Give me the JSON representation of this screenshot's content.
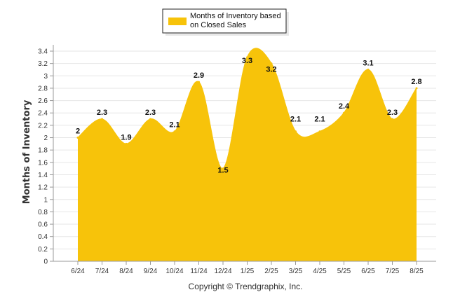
{
  "chart_data": {
    "type": "area",
    "categories": [
      "6/24",
      "7/24",
      "8/24",
      "9/24",
      "10/24",
      "11/24",
      "12/24",
      "1/25",
      "2/25",
      "3/25",
      "4/25",
      "5/25",
      "6/25",
      "7/25",
      "8/25"
    ],
    "series": [
      {
        "name": "Months of Inventory based on Closed Sales",
        "values": [
          2,
          2.3,
          1.9,
          2.3,
          2.1,
          2.9,
          1.5,
          3.3,
          3.2,
          2.1,
          2.1,
          2.4,
          3.1,
          2.3,
          2.8
        ],
        "color": "#F7C30A"
      }
    ],
    "data_labels": [
      "2",
      "2.3",
      "1.9",
      "2.3",
      "2.1",
      "2.9",
      "1.5",
      "3.3",
      "3.2",
      "2.1",
      "2.1",
      "2.4",
      "3.1",
      "2.3",
      "2.8"
    ],
    "ylabel": "Months of Inventory",
    "xlabel": "",
    "ylim": [
      0,
      3.4
    ],
    "y_ticks": [
      "0",
      "0.2",
      "0.4",
      "0.6",
      "0.8",
      "1",
      "1.2",
      "1.4",
      "1.6",
      "1.8",
      "2",
      "2.2",
      "2.4",
      "2.6",
      "2.8",
      "3",
      "3.2",
      "3.4"
    ],
    "legend": {
      "placement": "top-center",
      "label_line1": "Months of Inventory based",
      "label_line2": "on Closed Sales"
    },
    "grid": true,
    "footer": "Copyright © Trendgraphix, Inc."
  }
}
